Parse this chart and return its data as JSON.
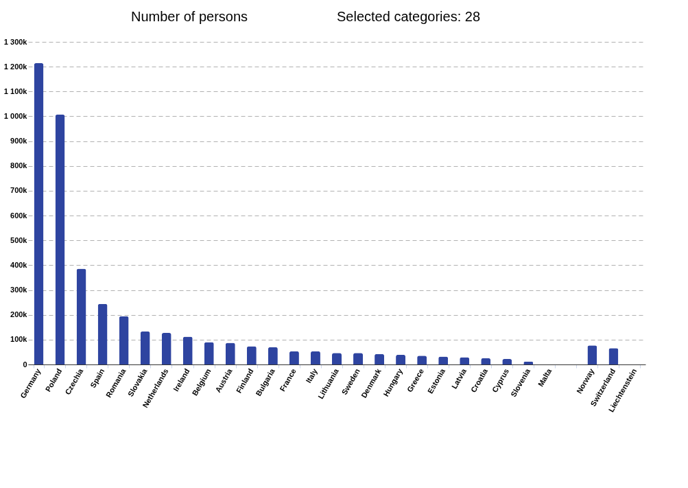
{
  "chart_data": {
    "type": "bar",
    "annotations": [
      "Number of persons",
      "Selected categories: 28"
    ],
    "categories": [
      "Germany",
      "Poland",
      "Czechia",
      "Spain",
      "Romania",
      "Slovakia",
      "Netherlands",
      "Ireland",
      "Belgium",
      "Austria",
      "Finland",
      "Bulgaria",
      "France",
      "Italy",
      "Lithuania",
      "Sweden",
      "Denmark",
      "Hungary",
      "Greece",
      "Estonia",
      "Latvia",
      "Croatia",
      "Cyprus",
      "Slovenia",
      "Malta",
      null,
      "Norway",
      "Switzerland",
      "Liechtenstein"
    ],
    "series": [
      {
        "color": "#2e44a0",
        "values": [
          1214000,
          1007000,
          386000,
          244000,
          194000,
          133000,
          127000,
          112000,
          90000,
          87000,
          73000,
          70000,
          53000,
          53000,
          46000,
          46000,
          42000,
          39000,
          35000,
          32000,
          29000,
          25000,
          22000,
          11000,
          null,
          null,
          77000,
          66000,
          null
        ]
      }
    ],
    "ylim": [
      0,
      1300000
    ],
    "yticks": [
      0,
      {
        "value": 100000,
        "label": "100k"
      },
      {
        "value": 200000,
        "label": "200k"
      },
      {
        "value": 300000,
        "label": "300k"
      },
      {
        "value": 400000,
        "label": "400k"
      },
      {
        "value": 500000,
        "label": "500k"
      },
      {
        "value": 600000,
        "label": "600k"
      },
      {
        "value": 700000,
        "label": "700k"
      },
      {
        "value": 800000,
        "label": "800k"
      },
      {
        "value": 900000,
        "label": "900k"
      },
      {
        "value": 1000000,
        "label": "1 000k"
      },
      {
        "value": 1100000,
        "label": "1 100k"
      },
      {
        "value": 1200000,
        "label": "1 200k"
      },
      {
        "value": 1300000,
        "label": "1 300k"
      }
    ],
    "grid": "y",
    "legend": false
  }
}
